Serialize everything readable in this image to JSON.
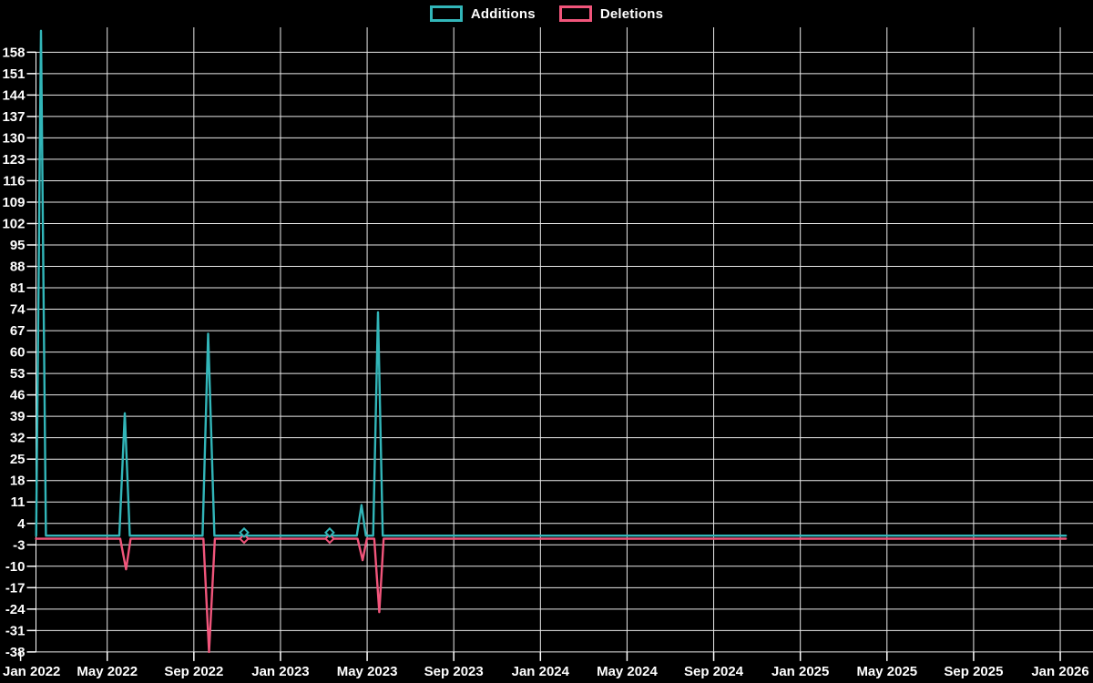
{
  "legend": {
    "items": [
      {
        "label": "Additions",
        "color": "#32b6b9"
      },
      {
        "label": "Deletions",
        "color": "#f1557b"
      }
    ]
  },
  "chart_data": {
    "type": "line",
    "title": "",
    "background_color": "#000000",
    "grid": true,
    "grid_color": "#e9e9e9",
    "text_color": "#ffffff",
    "legend_position": "top-center",
    "x_axis": {
      "unit": "months since Jan 2022",
      "tick_labels": [
        "Jan 2022",
        "May 2022",
        "Sep 2022",
        "Jan 2023",
        "May 2023",
        "Sep 2023",
        "Jan 2024",
        "May 2024",
        "Sep 2024",
        "Jan 2025",
        "May 2025",
        "Sep 2025",
        "Jan 2026"
      ],
      "tick_months": [
        0,
        4,
        8,
        12,
        16,
        20,
        24,
        28,
        32,
        36,
        40,
        44,
        48
      ],
      "data_start_label": "late Jan 2022",
      "data_end_label": "early Jan 2026"
    },
    "y_axis": {
      "min": -38,
      "max": 165,
      "tick_step": 7,
      "ticks": [
        158,
        151,
        144,
        137,
        130,
        123,
        116,
        109,
        102,
        95,
        88,
        81,
        74,
        67,
        60,
        53,
        46,
        39,
        32,
        25,
        18,
        11,
        4,
        -3,
        -10,
        -17,
        -24,
        -31,
        -38
      ]
    },
    "series": [
      {
        "name": "Additions",
        "color": "#32b6b9",
        "points": [
          [
            0.72,
            0
          ],
          [
            0.94,
            165
          ],
          [
            1.17,
            0
          ],
          [
            4.56,
            0
          ],
          [
            4.81,
            40
          ],
          [
            5.04,
            0
          ],
          [
            8.4,
            0
          ],
          [
            8.66,
            66
          ],
          [
            8.95,
            0
          ],
          [
            15.52,
            0
          ],
          [
            15.74,
            10
          ],
          [
            15.94,
            0
          ],
          [
            16.28,
            0
          ],
          [
            16.5,
            73
          ],
          [
            16.72,
            0
          ],
          [
            48.26,
            0
          ]
        ]
      },
      {
        "name": "Deletions",
        "color": "#f1557b",
        "points": [
          [
            0.71,
            -1
          ],
          [
            4.6,
            -1
          ],
          [
            4.87,
            -11
          ],
          [
            5.08,
            -1
          ],
          [
            8.44,
            -1
          ],
          [
            8.7,
            -38
          ],
          [
            8.97,
            -1
          ],
          [
            15.56,
            -1
          ],
          [
            15.79,
            -8
          ],
          [
            15.99,
            -1
          ],
          [
            16.33,
            -1
          ],
          [
            16.56,
            -25
          ],
          [
            16.76,
            -1
          ],
          [
            48.26,
            -1
          ]
        ]
      }
    ],
    "isolated_points": [
      {
        "m": 10.32,
        "Additions": 1,
        "Deletions": -1
      },
      {
        "m": 14.27,
        "Additions": 1,
        "Deletions": -1
      }
    ]
  }
}
